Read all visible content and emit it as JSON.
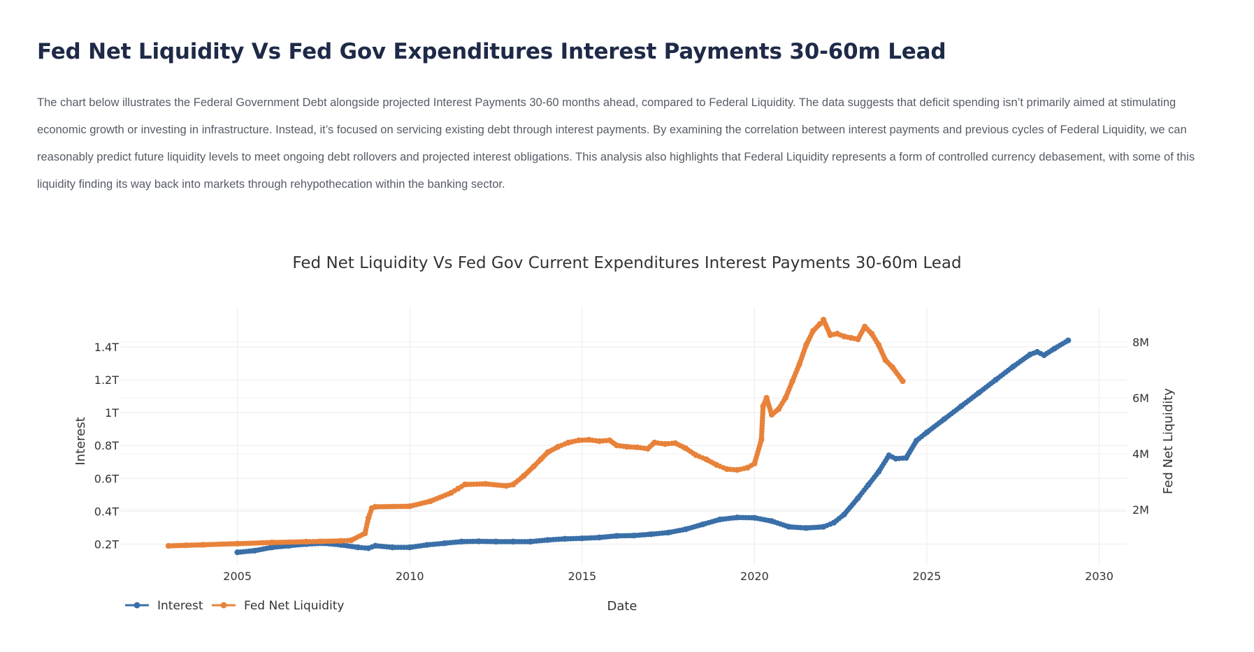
{
  "page": {
    "title": "Fed Net Liquidity Vs Fed Gov Expenditures Interest Payments 30-60m Lead",
    "description": "The chart below illustrates the Federal Government Debt alongside projected Interest Payments 30-60 months ahead, compared to Federal Liquidity. The data suggests that deficit spending isn’t primarily aimed at stimulating economic growth or investing in infrastructure. Instead, it’s focused on servicing existing debt through interest payments. By examining the correlation between interest payments and previous cycles of Federal Liquidity, we can reasonably predict future liquidity levels to meet ongoing debt rollovers and projected interest obligations. This analysis also highlights that Federal Liquidity represents a form of controlled currency debasement, with some of this liquidity finding its way back into markets through rehypothecation within the banking sector."
  },
  "chart_data": {
    "type": "line",
    "title": "Fed Net Liquidity Vs Fed Gov Current Expenditures Interest Payments 30-60m Lead",
    "xlabel": "Date",
    "ylabel_left": "Interest",
    "ylabel_right": "Fed Net Liquidity",
    "xlim": [
      2001.6,
      2030.8
    ],
    "ylim_left": [
      0.07,
      1.6
    ],
    "ylim_right": [
      0,
      9000000
    ],
    "x_ticks": [
      "2005",
      "2010",
      "2015",
      "2020",
      "2025",
      "2030"
    ],
    "x_tick_values": [
      2005,
      2010,
      2015,
      2020,
      2025,
      2030
    ],
    "y_left_ticks": [
      "0.2T",
      "0.4T",
      "0.6T",
      "0.8T",
      "1T",
      "1.2T",
      "1.4T"
    ],
    "y_left_tick_values": [
      0.2,
      0.4,
      0.6,
      0.8,
      1.0,
      1.2,
      1.4
    ],
    "y_right_ticks": [
      "2M",
      "4M",
      "6M",
      "8M"
    ],
    "y_right_tick_values": [
      2000000,
      4000000,
      6000000,
      8000000
    ],
    "grid": true,
    "legend_position": "bottom-left",
    "colors": {
      "interest": "#3a6fa8",
      "liquidity": "#e8823a",
      "grid": "#ebebeb",
      "axis_text": "#333333",
      "title_text": "#333333"
    },
    "series": [
      {
        "name": "Interest",
        "axis": "left",
        "color": "#3a6fa8",
        "x": [
          2005.0,
          2005.5,
          2006.0,
          2006.5,
          2007.0,
          2007.5,
          2008.0,
          2008.5,
          2008.8,
          2009.0,
          2009.5,
          2010.0,
          2010.5,
          2011.0,
          2011.5,
          2012.0,
          2012.5,
          2013.0,
          2013.5,
          2014.0,
          2014.5,
          2015.0,
          2015.5,
          2016.0,
          2016.5,
          2017.0,
          2017.5,
          2018.0,
          2018.5,
          2019.0,
          2019.5,
          2020.0,
          2020.5,
          2021.0,
          2021.5,
          2022.0,
          2022.3,
          2022.6,
          2023.0,
          2023.3,
          2023.6,
          2023.9,
          2024.1,
          2024.4,
          2024.7,
          2025.0,
          2025.5,
          2026.0,
          2026.5,
          2027.0,
          2027.5,
          2028.0,
          2028.2,
          2028.4,
          2028.7,
          2029.1
        ],
        "y": [
          0.15,
          0.16,
          0.18,
          0.19,
          0.2,
          0.205,
          0.195,
          0.18,
          0.175,
          0.19,
          0.18,
          0.18,
          0.195,
          0.205,
          0.215,
          0.217,
          0.215,
          0.215,
          0.215,
          0.225,
          0.232,
          0.235,
          0.24,
          0.25,
          0.252,
          0.26,
          0.27,
          0.29,
          0.32,
          0.35,
          0.362,
          0.36,
          0.34,
          0.305,
          0.298,
          0.305,
          0.33,
          0.38,
          0.48,
          0.56,
          0.64,
          0.74,
          0.72,
          0.725,
          0.83,
          0.88,
          0.96,
          1.04,
          1.12,
          1.2,
          1.28,
          1.355,
          1.37,
          1.35,
          1.39,
          1.44
        ]
      },
      {
        "name": "Fed Net Liquidity",
        "axis": "right",
        "color": "#e8823a",
        "x": [
          2003.0,
          2003.5,
          2004.0,
          2005.0,
          2006.0,
          2007.0,
          2007.4,
          2008.0,
          2008.3,
          2008.7,
          2008.8,
          2008.9,
          2009.0,
          2010.0,
          2010.6,
          2011.2,
          2011.4,
          2011.6,
          2012.2,
          2012.8,
          2013.0,
          2013.3,
          2013.6,
          2013.8,
          2014.0,
          2014.3,
          2014.6,
          2014.9,
          2015.2,
          2015.5,
          2015.8,
          2016.0,
          2016.3,
          2016.6,
          2016.9,
          2017.1,
          2017.4,
          2017.7,
          2018.0,
          2018.3,
          2018.6,
          2018.9,
          2019.2,
          2019.5,
          2019.8,
          2020.0,
          2020.2,
          2020.25,
          2020.35,
          2020.5,
          2020.7,
          2020.9,
          2021.1,
          2021.3,
          2021.5,
          2021.7,
          2021.9,
          2022.0,
          2022.2,
          2022.4,
          2022.6,
          2022.8,
          2023.0,
          2023.2,
          2023.4,
          2023.6,
          2023.8,
          2024.0,
          2024.3
        ],
        "y": [
          700000,
          720000,
          740000,
          780000,
          820000,
          850000,
          860000,
          880000,
          900000,
          1150000,
          1700000,
          2050000,
          2100000,
          2120000,
          2300000,
          2600000,
          2750000,
          2900000,
          2920000,
          2850000,
          2900000,
          3200000,
          3550000,
          3800000,
          4050000,
          4250000,
          4400000,
          4480000,
          4500000,
          4450000,
          4480000,
          4300000,
          4250000,
          4230000,
          4180000,
          4400000,
          4350000,
          4380000,
          4200000,
          3950000,
          3800000,
          3600000,
          3450000,
          3420000,
          3500000,
          3650000,
          4500000,
          5700000,
          6000000,
          5400000,
          5600000,
          6000000,
          6600000,
          7200000,
          7900000,
          8400000,
          8650000,
          8800000,
          8250000,
          8300000,
          8200000,
          8150000,
          8100000,
          8550000,
          8300000,
          7900000,
          7350000,
          7100000,
          6600000
        ]
      }
    ]
  }
}
